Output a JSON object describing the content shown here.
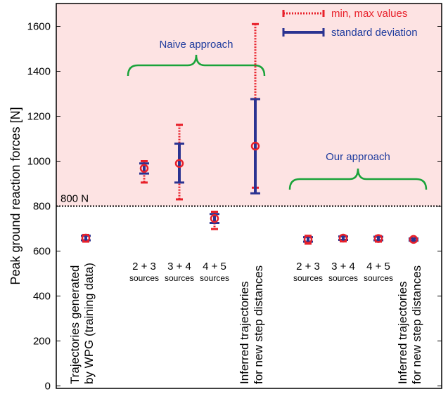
{
  "chart_data": {
    "type": "scatter",
    "ylabel": "Peak ground reaction forces  [N]",
    "ylim": [
      0,
      1700
    ],
    "yticks": [
      0,
      200,
      400,
      600,
      800,
      1000,
      1200,
      1400,
      1600
    ],
    "grid": false,
    "threshold": {
      "value": 800,
      "label": "800 N"
    },
    "legend": {
      "placement": "top-right",
      "entries": [
        {
          "label": "min, max values",
          "style": "red-dotted"
        },
        {
          "label": "standard deviation",
          "style": "blue-solid"
        }
      ]
    },
    "categories": [
      {
        "label_lines": [
          "Trajectories generated",
          "by WPG (training data)"
        ],
        "rotated": true
      },
      {
        "label_lines": [
          "2 + 3",
          "sources"
        ],
        "rotated": false
      },
      {
        "label_lines": [
          "3 + 4",
          "sources"
        ],
        "rotated": false
      },
      {
        "label_lines": [
          "4 + 5",
          "sources"
        ],
        "rotated": false
      },
      {
        "label_lines": [
          "Inferred trajectories",
          "for new step distances"
        ],
        "rotated": true
      },
      {
        "label_lines": [
          "2 + 3",
          "sources"
        ],
        "rotated": false
      },
      {
        "label_lines": [
          "3 + 4",
          "sources"
        ],
        "rotated": false
      },
      {
        "label_lines": [
          "4 + 5",
          "sources"
        ],
        "rotated": false
      },
      {
        "label_lines": [
          "Inferred trajectories",
          "for new step distances"
        ],
        "rotated": true
      }
    ],
    "series": [
      {
        "name": "Peak ground reaction force",
        "points": [
          {
            "mean": 658,
            "std_low": 648,
            "std_high": 668,
            "min": 642,
            "max": 672
          },
          {
            "mean": 968,
            "std_low": 945,
            "std_high": 990,
            "min": 905,
            "max": 1000
          },
          {
            "mean": 990,
            "std_low": 905,
            "std_high": 1078,
            "min": 830,
            "max": 1162
          },
          {
            "mean": 745,
            "std_low": 725,
            "std_high": 765,
            "min": 698,
            "max": 775
          },
          {
            "mean": 1067,
            "std_low": 857,
            "std_high": 1276,
            "min": 882,
            "max": 1610
          },
          {
            "mean": 652,
            "std_low": 642,
            "std_high": 662,
            "min": 633,
            "max": 668
          },
          {
            "mean": 658,
            "std_low": 650,
            "std_high": 665,
            "min": 643,
            "max": 668
          },
          {
            "mean": 656,
            "std_low": 648,
            "std_high": 664,
            "min": 642,
            "max": 667
          },
          {
            "mean": 652,
            "std_low": 646,
            "std_high": 656,
            "min": 643,
            "max": 658
          }
        ]
      }
    ],
    "annotations": [
      {
        "text": "Naive approach",
        "spans": [
          1,
          4
        ]
      },
      {
        "text": "Our approach",
        "spans": [
          5,
          8
        ]
      }
    ]
  },
  "colors": {
    "highlight_region": "#fde3e3",
    "minmax": "#e8202a",
    "stddev": "#2b3391",
    "mean_marker": "#e8202a",
    "brace": "#1aa33a",
    "annotation_text": "#1f3c9e",
    "threshold_label": "#e8202a"
  }
}
